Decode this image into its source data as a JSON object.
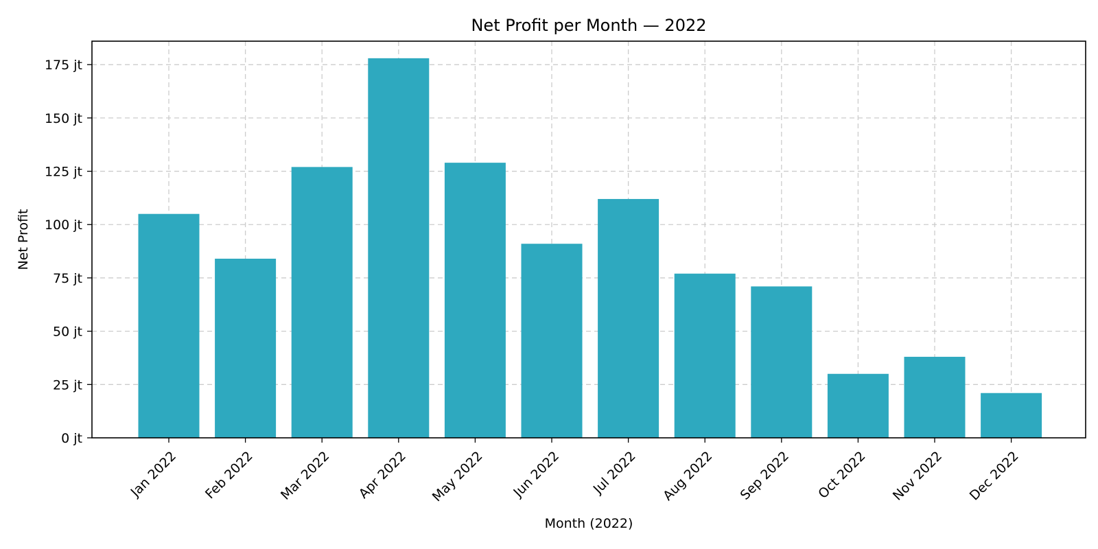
{
  "chart_data": {
    "type": "bar",
    "title": "Net Profit per Month — 2022",
    "xlabel": "Month (2022)",
    "ylabel": "Net Profit",
    "categories": [
      "Jan 2022",
      "Feb 2022",
      "Mar 2022",
      "Apr 2022",
      "May 2022",
      "Jun 2022",
      "Jul 2022",
      "Aug 2022",
      "Sep 2022",
      "Oct 2022",
      "Nov 2022",
      "Dec 2022"
    ],
    "values": [
      105,
      84,
      127,
      178,
      129,
      91,
      112,
      77,
      71,
      30,
      38,
      21
    ],
    "value_unit": "jt",
    "ylim": [
      0,
      186
    ],
    "yticks": [
      0,
      25,
      50,
      75,
      100,
      125,
      150,
      175
    ],
    "ytick_labels": [
      "0 jt",
      "25 jt",
      "50 jt",
      "75 jt",
      "100 jt",
      "125 jt",
      "150 jt",
      "175 jt"
    ],
    "grid": true,
    "bar_color": "#2ea9bf"
  }
}
